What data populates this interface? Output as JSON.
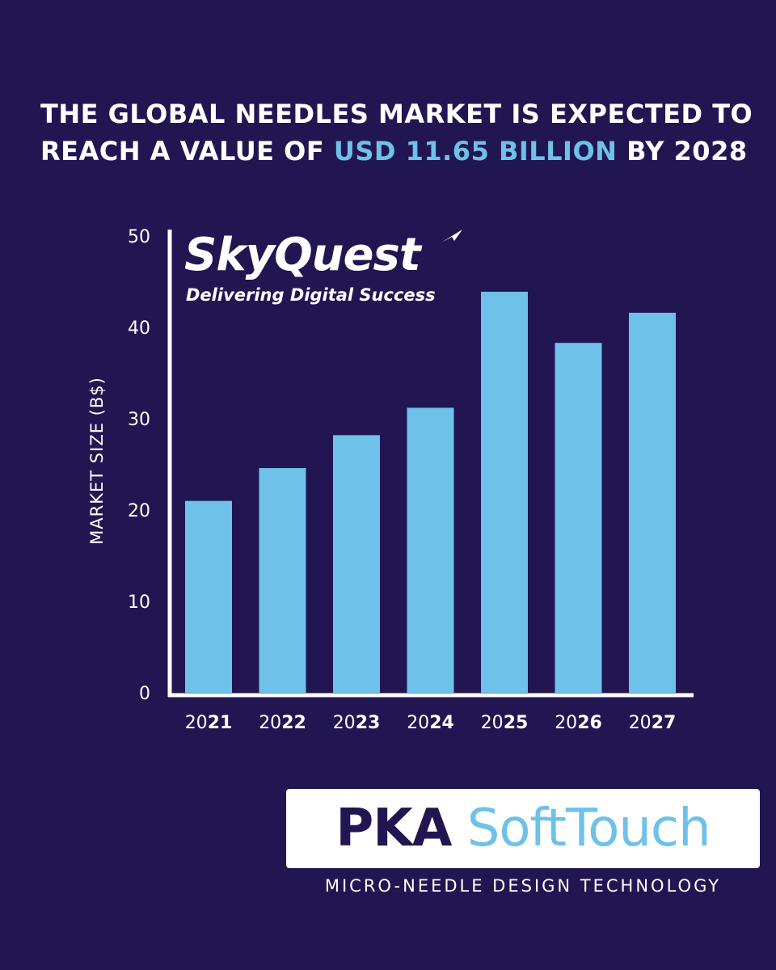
{
  "headline": {
    "line1": "THE GLOBAL NEEDLES MARKET IS EXPECTED TO",
    "line2_prefix": "REACH A VALUE OF ",
    "line2_highlight": "USD 11.65 BILLION",
    "line2_suffix": " BY 2028"
  },
  "brand": {
    "name": "SkyQuest",
    "tagline": "Delivering Digital Success"
  },
  "footer": {
    "logo_primary": "PKA",
    "logo_secondary": "SoftTouch",
    "subtitle": "MICRO-NEEDLE DESIGN TECHNOLOGY"
  },
  "colors": {
    "background": "#221652",
    "bar": "#6ec1e8",
    "accent": "#6ec1e8",
    "axis": "#ffffff"
  },
  "chart_data": {
    "type": "bar",
    "categories": [
      "2021",
      "2022",
      "2023",
      "2024",
      "2025",
      "2026",
      "2027"
    ],
    "category_parts": [
      {
        "prefix": "20",
        "suffix": "21"
      },
      {
        "prefix": "20",
        "suffix": "22"
      },
      {
        "prefix": "20",
        "suffix": "23"
      },
      {
        "prefix": "20",
        "suffix": "24"
      },
      {
        "prefix": "20",
        "suffix": "25"
      },
      {
        "prefix": "20",
        "suffix": "26"
      },
      {
        "prefix": "20",
        "suffix": "27"
      }
    ],
    "values": [
      21.0,
      24.6,
      28.2,
      31.2,
      43.9,
      38.3,
      41.6
    ],
    "ylabel": "MARKET SIZE (B$)",
    "xlabel": "",
    "ylim": [
      0,
      50
    ],
    "yticks": [
      0,
      10,
      20,
      30,
      40,
      50
    ],
    "grid": false
  }
}
